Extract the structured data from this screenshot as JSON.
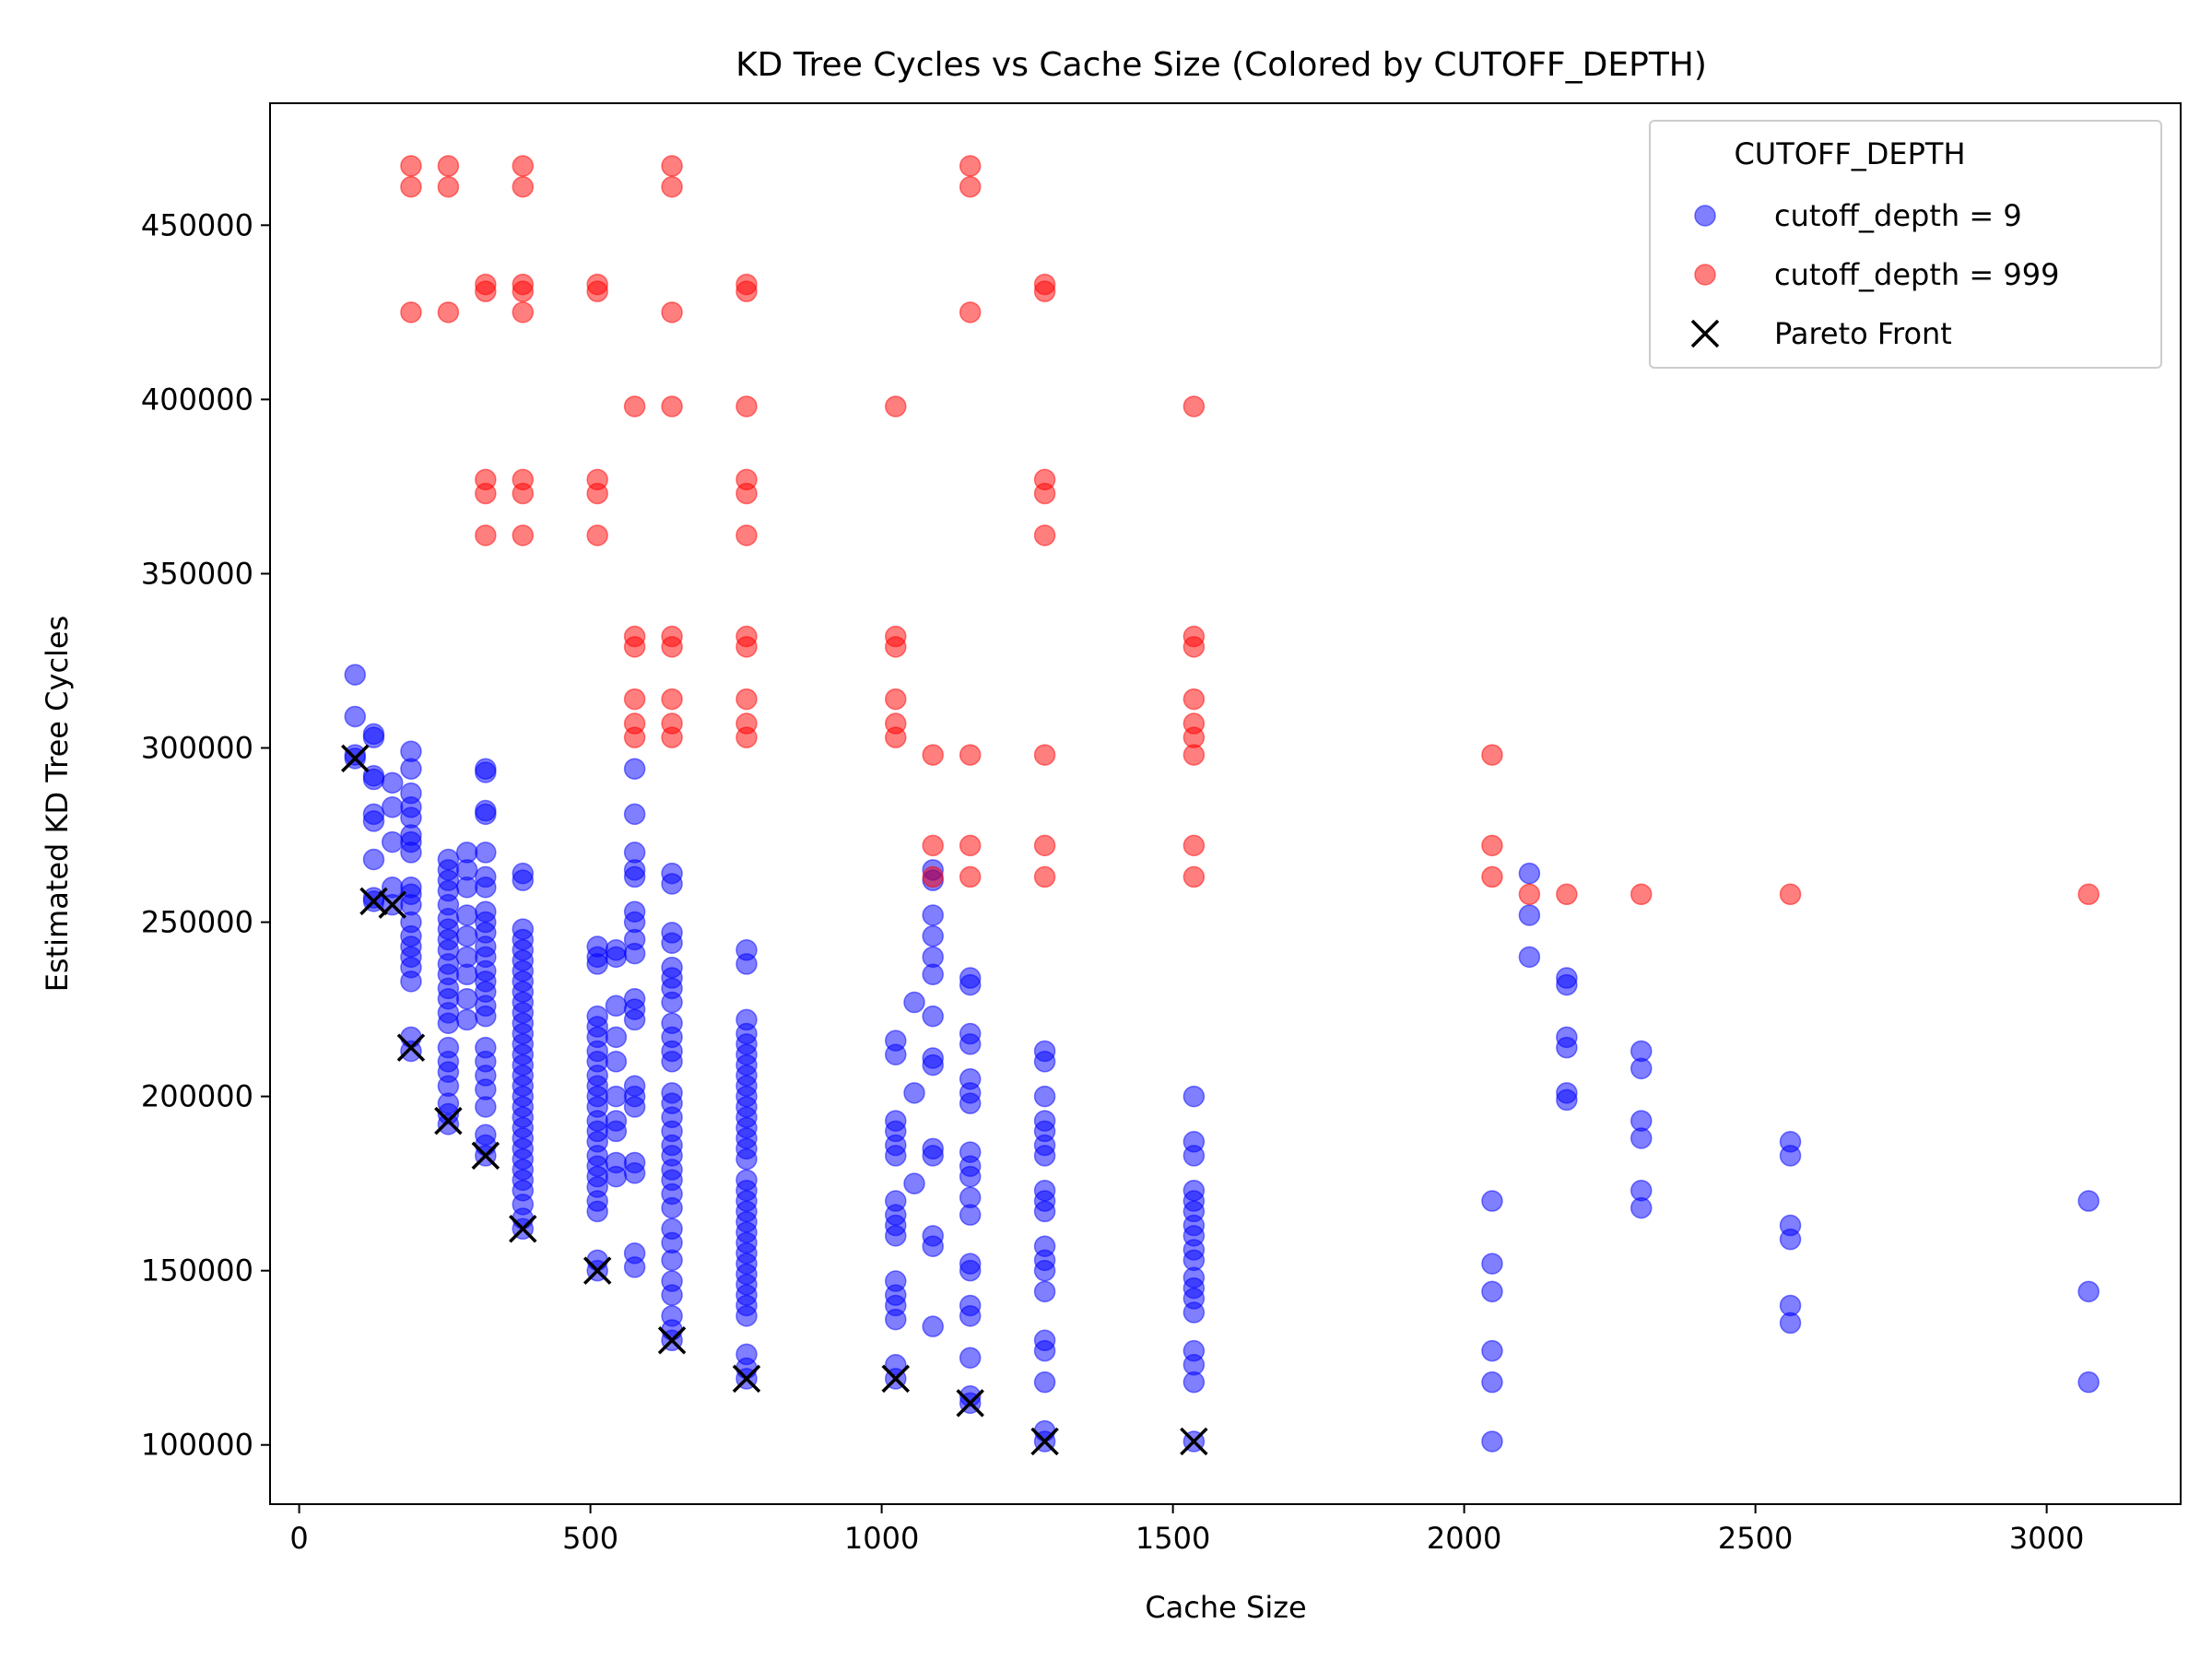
{
  "chart_data": {
    "type": "scatter",
    "title": "KD Tree Cycles vs Cache Size (Colored by CUTOFF_DEPTH)",
    "xlabel": "Cache Size",
    "ylabel": "Estimated KD Tree Cycles",
    "xlim": [
      -50,
      3230
    ],
    "ylim": [
      83000,
      485000
    ],
    "xticks": [
      0,
      500,
      1000,
      1500,
      2000,
      2500,
      3000
    ],
    "yticks": [
      100000,
      150000,
      200000,
      250000,
      300000,
      350000,
      400000,
      450000
    ],
    "grid": false,
    "legend": {
      "title": "CUTOFF_DEPTH",
      "placement": "top-right"
    },
    "series": [
      {
        "name": "cutoff_depth = 9",
        "color": "#0000ff",
        "alpha": 0.5,
        "marker": "circle",
        "groups": [
          {
            "x": 96,
            "y": [
              321000,
              309000,
              298000,
              297000
            ]
          },
          {
            "x": 128,
            "y": [
              304000,
              303000,
              292000,
              291000,
              281000,
              279000,
              268000,
              257000,
              256000
            ]
          },
          {
            "x": 160,
            "y": [
              290000,
              283000,
              273000,
              260000,
              255000
            ]
          },
          {
            "x": 192,
            "y": [
              299000,
              294000,
              287000,
              283000,
              280000,
              275000,
              273000,
              270000,
              260000,
              258000,
              255000,
              250000,
              246000,
              243000,
              240000,
              237000,
              233000,
              217000,
              213000
            ]
          },
          {
            "x": 256,
            "y": [
              268000,
              265000,
              262000,
              259000,
              255000,
              251000,
              248000,
              245000,
              242000,
              238000,
              235000,
              231000,
              228000,
              224000,
              221000,
              214000,
              210000,
              207000,
              203000,
              198000,
              195000,
              192000
            ]
          },
          {
            "x": 288,
            "y": [
              270000,
              265000,
              260000,
              252000,
              246000,
              240000,
              235000,
              228000,
              222000
            ]
          },
          {
            "x": 320,
            "y": [
              294000,
              293000,
              282000,
              281000,
              270000,
              263000,
              260000,
              253000,
              250000,
              247000,
              243000,
              240000,
              236000,
              233000,
              230000,
              226000,
              223000,
              214000,
              210000,
              206000,
              202000,
              197000,
              189000,
              186000,
              183000
            ]
          },
          {
            "x": 384,
            "y": [
              264000,
              262000,
              248000,
              245000,
              242000,
              239000,
              236000,
              233000,
              230000,
              227000,
              224000,
              221000,
              218000,
              215000,
              212000,
              209000,
              206000,
              203000,
              200000,
              197000,
              194000,
              191000,
              188000,
              185000,
              182000,
              179000,
              176000,
              173000,
              169000,
              165000,
              162000
            ]
          },
          {
            "x": 512,
            "y": [
              243000,
              240000,
              238000,
              223000,
              220000,
              217000,
              213000,
              210000,
              206000,
              203000,
              200000,
              197000,
              193000,
              190000,
              187000,
              183000,
              180000,
              177000,
              174000,
              170000,
              167000,
              153000,
              150000
            ]
          },
          {
            "x": 544,
            "y": [
              242000,
              240000,
              226000,
              217000,
              210000,
              200000,
              193000,
              190000,
              181000,
              177000
            ]
          },
          {
            "x": 576,
            "y": [
              294000,
              281000,
              270000,
              265000,
              263000,
              253000,
              250000,
              245000,
              241000,
              228000,
              225000,
              222000,
              203000,
              200000,
              197000,
              181000,
              178000,
              155000,
              151000
            ]
          },
          {
            "x": 640,
            "y": [
              264000,
              261000,
              247000,
              244000,
              237000,
              234000,
              231000,
              227000,
              221000,
              217000,
              213000,
              210000,
              201000,
              198000,
              194000,
              190000,
              186000,
              183000,
              179000,
              176000,
              172000,
              168000,
              162000,
              158000,
              153000,
              147000,
              143000,
              137000,
              133000,
              130000
            ]
          },
          {
            "x": 768,
            "y": [
              242000,
              238000,
              222000,
              218000,
              215000,
              212000,
              209000,
              206000,
              203000,
              200000,
              197000,
              194000,
              191000,
              188000,
              185000,
              182000,
              176000,
              173000,
              170000,
              167000,
              164000,
              161000,
              158000,
              155000,
              152000,
              149000,
              146000,
              143000,
              140000,
              137000,
              126000,
              122000,
              119000
            ]
          },
          {
            "x": 1024,
            "y": [
              216000,
              212000,
              193000,
              190000,
              186000,
              183000,
              170000,
              166000,
              163000,
              160000,
              147000,
              143000,
              140000,
              136000,
              123000,
              119000
            ]
          },
          {
            "x": 1056,
            "y": [
              227000,
              201000,
              175000
            ]
          },
          {
            "x": 1088,
            "y": [
              265000,
              262000,
              252000,
              246000,
              240000,
              235000,
              223000,
              211000,
              209000,
              185000,
              183000,
              160000,
              157000,
              134000
            ]
          },
          {
            "x": 1152,
            "y": [
              234000,
              232000,
              218000,
              215000,
              205000,
              201000,
              198000,
              184000,
              180000,
              177000,
              171000,
              166000,
              152000,
              150000,
              140000,
              137000,
              125000,
              114000,
              112000
            ]
          },
          {
            "x": 1280,
            "y": [
              213000,
              210000,
              200000,
              193000,
              190000,
              186000,
              183000,
              173000,
              170000,
              167000,
              157000,
              153000,
              150000,
              144000,
              130000,
              127000,
              118000,
              104000,
              101000
            ]
          },
          {
            "x": 1536,
            "y": [
              200000,
              187000,
              183000,
              173000,
              170000,
              167000,
              163000,
              160000,
              156000,
              153000,
              148000,
              145000,
              142000,
              138000,
              127000,
              123000,
              118000,
              101000
            ]
          },
          {
            "x": 2048,
            "y": [
              170000,
              152000,
              144000,
              127000,
              118000,
              101000
            ]
          },
          {
            "x": 2112,
            "y": [
              264000,
              252000,
              240000
            ]
          },
          {
            "x": 2176,
            "y": [
              234000,
              232000,
              217000,
              214000,
              201000,
              199000
            ]
          },
          {
            "x": 2304,
            "y": [
              213000,
              208000,
              193000,
              188000,
              173000,
              168000
            ]
          },
          {
            "x": 2560,
            "y": [
              187000,
              183000,
              163000,
              159000,
              140000,
              135000
            ]
          },
          {
            "x": 3072,
            "y": [
              170000,
              144000,
              118000
            ]
          }
        ]
      },
      {
        "name": "cutoff_depth = 999",
        "color": "#ff0000",
        "alpha": 0.5,
        "marker": "circle",
        "groups": [
          {
            "x": 192,
            "y": [
              467000,
              461000,
              425000
            ]
          },
          {
            "x": 256,
            "y": [
              467000,
              461000,
              425000
            ]
          },
          {
            "x": 320,
            "y": [
              433000,
              431000,
              377000,
              373000,
              361000
            ]
          },
          {
            "x": 384,
            "y": [
              467000,
              461000,
              433000,
              431000,
              425000,
              377000,
              373000,
              361000
            ]
          },
          {
            "x": 512,
            "y": [
              433000,
              431000,
              377000,
              373000,
              361000
            ]
          },
          {
            "x": 576,
            "y": [
              398000,
              332000,
              329000,
              314000,
              307000,
              303000
            ]
          },
          {
            "x": 640,
            "y": [
              467000,
              461000,
              425000,
              398000,
              332000,
              329000,
              314000,
              307000,
              303000
            ]
          },
          {
            "x": 768,
            "y": [
              433000,
              431000,
              398000,
              377000,
              373000,
              361000,
              332000,
              329000,
              314000,
              307000,
              303000
            ]
          },
          {
            "x": 1024,
            "y": [
              398000,
              332000,
              329000,
              314000,
              307000,
              303000
            ]
          },
          {
            "x": 1088,
            "y": [
              298000,
              272000,
              263000
            ]
          },
          {
            "x": 1152,
            "y": [
              467000,
              461000,
              425000,
              298000,
              272000,
              263000
            ]
          },
          {
            "x": 1280,
            "y": [
              433000,
              431000,
              377000,
              373000,
              361000,
              298000,
              272000,
              263000
            ]
          },
          {
            "x": 1536,
            "y": [
              398000,
              332000,
              329000,
              314000,
              307000,
              303000,
              298000,
              272000,
              263000
            ]
          },
          {
            "x": 2048,
            "y": [
              298000,
              272000,
              263000
            ]
          },
          {
            "x": 2112,
            "y": [
              258000
            ]
          },
          {
            "x": 2176,
            "y": [
              258000
            ]
          },
          {
            "x": 2304,
            "y": [
              258000
            ]
          },
          {
            "x": 2560,
            "y": [
              258000
            ]
          },
          {
            "x": 3072,
            "y": [
              258000
            ]
          }
        ]
      },
      {
        "name": "Pareto Front",
        "color": "#000000",
        "marker": "x",
        "points": [
          {
            "x": 96,
            "y": 297000
          },
          {
            "x": 128,
            "y": 256000
          },
          {
            "x": 160,
            "y": 255000
          },
          {
            "x": 192,
            "y": 214000
          },
          {
            "x": 256,
            "y": 193000
          },
          {
            "x": 320,
            "y": 183000
          },
          {
            "x": 384,
            "y": 162000
          },
          {
            "x": 512,
            "y": 150000
          },
          {
            "x": 640,
            "y": 130000
          },
          {
            "x": 768,
            "y": 119000
          },
          {
            "x": 1024,
            "y": 119000
          },
          {
            "x": 1152,
            "y": 112000
          },
          {
            "x": 1280,
            "y": 101000
          },
          {
            "x": 1536,
            "y": 101000
          }
        ]
      }
    ]
  }
}
